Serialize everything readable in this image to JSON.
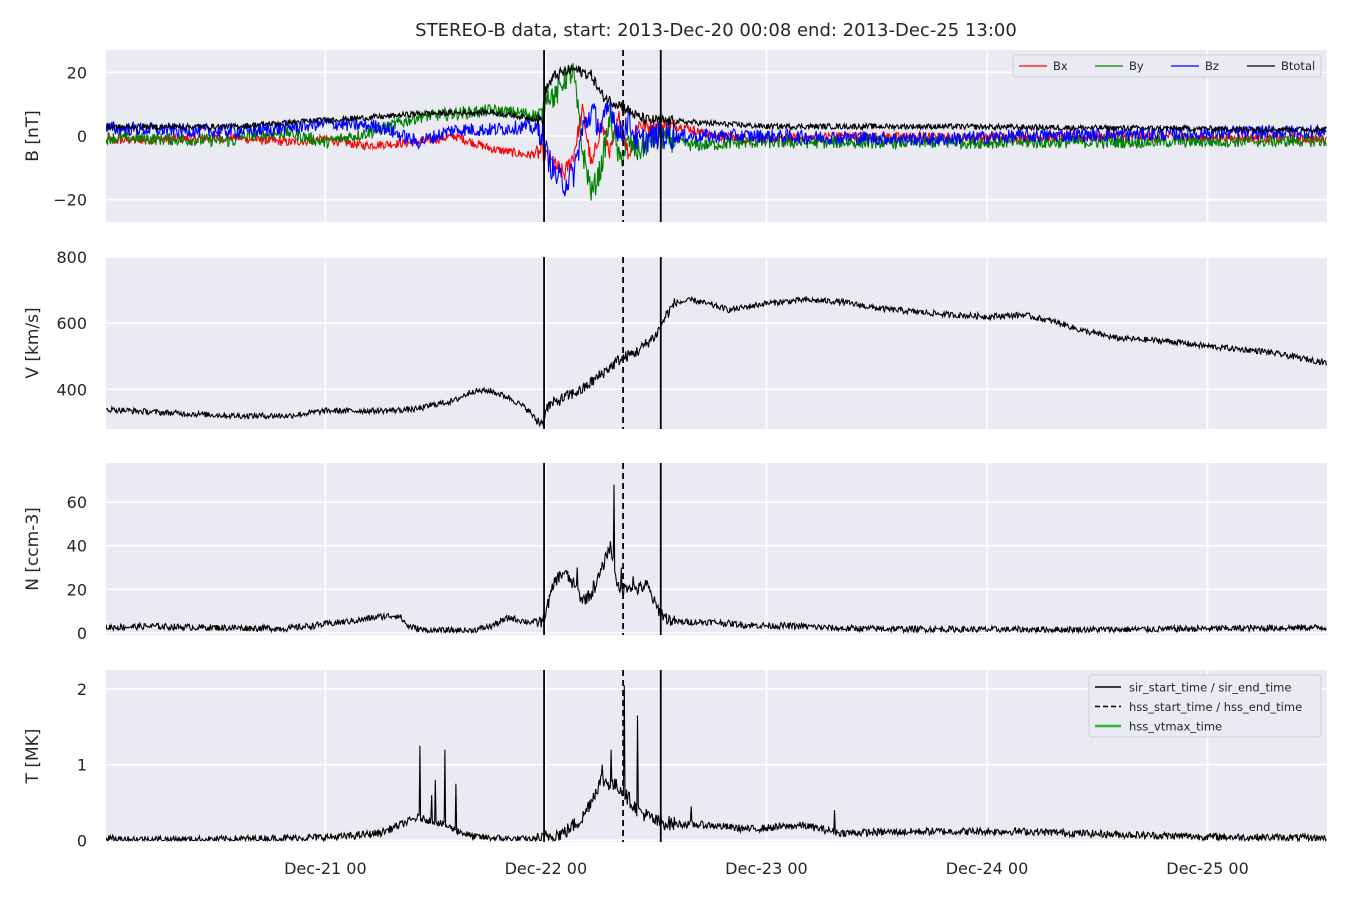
{
  "title": "STEREO-B data, start: 2013-Dec-20 00:08  end: 2013-Dec-25 13:00",
  "chart_data": [
    {
      "type": "line",
      "panel": "B",
      "ylabel": "B [nT]",
      "ylim": [
        -27,
        27
      ],
      "yticks": [
        -20,
        0,
        20
      ],
      "xlim_hours": [
        0.13,
        133.0
      ],
      "grid": true,
      "legend": "top-right",
      "series": [
        {
          "name": "Bx",
          "color": "#ff0000",
          "base": [
            [
              0,
              -1.5
            ],
            [
              14,
              -0.5
            ],
            [
              20,
              -2
            ],
            [
              24,
              -1
            ],
            [
              28,
              -3
            ],
            [
              34,
              -2
            ],
            [
              38,
              0
            ],
            [
              42,
              -4
            ],
            [
              46,
              -6
            ],
            [
              47.7,
              -5
            ],
            [
              48.5,
              -8
            ],
            [
              50,
              -12
            ],
            [
              51,
              -6
            ],
            [
              52,
              8
            ],
            [
              53,
              -10
            ],
            [
              54,
              4
            ],
            [
              55,
              -5
            ],
            [
              56,
              6
            ],
            [
              57,
              -6
            ],
            [
              58,
              4
            ],
            [
              59,
              3
            ],
            [
              63,
              3
            ],
            [
              66,
              0
            ],
            [
              72,
              -1
            ],
            [
              80,
              0
            ],
            [
              96,
              -0.5
            ],
            [
              110,
              0
            ],
            [
              133,
              -1
            ]
          ],
          "noise": 1.4
        },
        {
          "name": "By",
          "color": "#008000",
          "base": [
            [
              0,
              -0.5
            ],
            [
              14,
              -1.5
            ],
            [
              15,
              0
            ],
            [
              20,
              1
            ],
            [
              24,
              -2
            ],
            [
              30,
              2
            ],
            [
              34,
              6
            ],
            [
              38,
              7
            ],
            [
              42,
              8
            ],
            [
              46,
              7
            ],
            [
              47.7,
              6
            ],
            [
              48,
              14
            ],
            [
              49,
              12
            ],
            [
              50,
              18
            ],
            [
              51,
              20
            ],
            [
              52,
              -5
            ],
            [
              53,
              -18
            ],
            [
              54,
              -10
            ],
            [
              55,
              6
            ],
            [
              56,
              -8
            ],
            [
              57,
              -2
            ],
            [
              58,
              -5
            ],
            [
              60,
              0
            ],
            [
              64,
              -3
            ],
            [
              70,
              -2
            ],
            [
              80,
              -2
            ],
            [
              100,
              -2
            ],
            [
              133,
              -1.5
            ]
          ],
          "noise": 2.0
        },
        {
          "name": "Bz",
          "color": "#0000ff",
          "base": [
            [
              0,
              2.5
            ],
            [
              12,
              1.5
            ],
            [
              18,
              2
            ],
            [
              24,
              4
            ],
            [
              30,
              3
            ],
            [
              34,
              -2
            ],
            [
              38,
              2
            ],
            [
              42,
              2
            ],
            [
              46,
              3
            ],
            [
              47.7,
              1
            ],
            [
              48,
              -5
            ],
            [
              49,
              -12
            ],
            [
              50,
              -15
            ],
            [
              51,
              -12
            ],
            [
              52,
              2
            ],
            [
              53,
              8
            ],
            [
              54,
              2
            ],
            [
              55,
              10
            ],
            [
              56,
              0
            ],
            [
              57,
              5
            ],
            [
              58,
              -2
            ],
            [
              60,
              0
            ],
            [
              66,
              0
            ],
            [
              72,
              0
            ],
            [
              90,
              -1
            ],
            [
              100,
              0
            ],
            [
              133,
              1.5
            ]
          ],
          "noise": 2.2
        },
        {
          "name": "Btotal",
          "color": "#000000",
          "base": [
            [
              0,
              2.8
            ],
            [
              14,
              3
            ],
            [
              24,
              5
            ],
            [
              30,
              6
            ],
            [
              34,
              7
            ],
            [
              42,
              7.5
            ],
            [
              47.7,
              5
            ],
            [
              48,
              15
            ],
            [
              49,
              19
            ],
            [
              50,
              20
            ],
            [
              51,
              21
            ],
            [
              52,
              20
            ],
            [
              53,
              19
            ],
            [
              54,
              13
            ],
            [
              55,
              11
            ],
            [
              56,
              10
            ],
            [
              57,
              8
            ],
            [
              58,
              6
            ],
            [
              59,
              5
            ],
            [
              66,
              4
            ],
            [
              72,
              3
            ],
            [
              90,
              3
            ],
            [
              110,
              2.5
            ],
            [
              133,
              2
            ]
          ],
          "noise": 0.9
        }
      ]
    },
    {
      "type": "line",
      "panel": "V",
      "ylabel": "V [km/s]",
      "ylim": [
        280,
        800
      ],
      "yticks": [
        400,
        600,
        800
      ],
      "xlim_hours": [
        0.13,
        133.0
      ],
      "grid": true,
      "series": [
        {
          "name": "",
          "color": "#000000",
          "base": [
            [
              0,
              340
            ],
            [
              6,
              330
            ],
            [
              14,
              320
            ],
            [
              20,
              320
            ],
            [
              24,
              335
            ],
            [
              30,
              335
            ],
            [
              34,
              340
            ],
            [
              36,
              355
            ],
            [
              38,
              365
            ],
            [
              40,
              395
            ],
            [
              42,
              395
            ],
            [
              44,
              375
            ],
            [
              46,
              340
            ],
            [
              47,
              305
            ],
            [
              47.7,
              300
            ],
            [
              48,
              345
            ],
            [
              50,
              375
            ],
            [
              52,
              400
            ],
            [
              54,
              445
            ],
            [
              56,
              490
            ],
            [
              58,
              515
            ],
            [
              60,
              565
            ],
            [
              61,
              620
            ],
            [
              62,
              660
            ],
            [
              64,
              670
            ],
            [
              66,
              655
            ],
            [
              68,
              640
            ],
            [
              70,
              650
            ],
            [
              72,
              660
            ],
            [
              76,
              670
            ],
            [
              80,
              665
            ],
            [
              84,
              645
            ],
            [
              88,
              635
            ],
            [
              92,
              625
            ],
            [
              96,
              620
            ],
            [
              100,
              625
            ],
            [
              104,
              600
            ],
            [
              106,
              580
            ],
            [
              110,
              555
            ],
            [
              116,
              545
            ],
            [
              120,
              530
            ],
            [
              126,
              515
            ],
            [
              133,
              480
            ]
          ],
          "noise": 9
        }
      ]
    },
    {
      "type": "line",
      "panel": "N",
      "ylabel": "N [ccm-3]",
      "ylim": [
        -1,
        78
      ],
      "yticks": [
        0,
        20,
        40,
        60
      ],
      "xlim_hours": [
        0.13,
        133.0
      ],
      "grid": true,
      "series": [
        {
          "name": "",
          "color": "#000000",
          "base": [
            [
              0,
              2.5
            ],
            [
              5,
              3
            ],
            [
              10,
              2.5
            ],
            [
              20,
              2
            ],
            [
              24,
              4
            ],
            [
              28,
              6
            ],
            [
              30,
              7.5
            ],
            [
              32,
              8
            ],
            [
              33,
              3
            ],
            [
              35,
              1
            ],
            [
              40,
              1
            ],
            [
              42,
              3
            ],
            [
              44,
              7
            ],
            [
              46,
              5
            ],
            [
              47.7,
              5
            ],
            [
              48,
              10
            ],
            [
              49,
              24
            ],
            [
              50,
              28
            ],
            [
              51,
              22
            ],
            [
              52,
              15
            ],
            [
              53,
              18
            ],
            [
              54,
              28
            ],
            [
              55,
              40
            ],
            [
              56,
              18
            ],
            [
              57,
              22
            ],
            [
              58,
              20
            ],
            [
              59,
              22
            ],
            [
              60,
              12
            ],
            [
              61,
              7
            ],
            [
              62,
              5
            ],
            [
              66,
              5
            ],
            [
              70,
              3.5
            ],
            [
              76,
              3
            ],
            [
              80,
              2
            ],
            [
              96,
              1.5
            ],
            [
              110,
              1.5
            ],
            [
              133,
              2.5
            ]
          ],
          "noise": 1.5,
          "spikes": [
            [
              54.6,
              35
            ],
            [
              55.4,
              68
            ],
            [
              56.2,
              30
            ],
            [
              53.2,
              24
            ],
            [
              51.4,
              30
            ],
            [
              57.5,
              26
            ]
          ]
        }
      ]
    },
    {
      "type": "line",
      "panel": "T",
      "ylabel": "T [MK]",
      "ylim": [
        -0.02,
        2.25
      ],
      "yticks": [
        0,
        1,
        2
      ],
      "xlim_hours": [
        0.13,
        133.0
      ],
      "grid": true,
      "legend": "top-right",
      "series": [
        {
          "name": "",
          "color": "#000000",
          "base": [
            [
              0,
              0.02
            ],
            [
              10,
              0.01
            ],
            [
              20,
              0.03
            ],
            [
              26,
              0.05
            ],
            [
              30,
              0.1
            ],
            [
              32,
              0.2
            ],
            [
              34,
              0.3
            ],
            [
              36,
              0.25
            ],
            [
              38,
              0.15
            ],
            [
              40,
              0.05
            ],
            [
              44,
              0.02
            ],
            [
              47.7,
              0.01
            ],
            [
              48,
              0.05
            ],
            [
              50,
              0.1
            ],
            [
              52,
              0.3
            ],
            [
              54,
              0.8
            ],
            [
              56,
              0.7
            ],
            [
              58,
              0.4
            ],
            [
              60,
              0.25
            ],
            [
              62,
              0.22
            ],
            [
              66,
              0.2
            ],
            [
              70,
              0.15
            ],
            [
              76,
              0.2
            ],
            [
              80,
              0.1
            ],
            [
              90,
              0.12
            ],
            [
              100,
              0.12
            ],
            [
              110,
              0.08
            ],
            [
              120,
              0.05
            ],
            [
              133,
              0.03
            ]
          ],
          "noise": 0.05,
          "spikes": [
            [
              34.3,
              1.25
            ],
            [
              37.0,
              1.2
            ],
            [
              35.6,
              0.6
            ],
            [
              36.0,
              0.8
            ],
            [
              38.2,
              0.75
            ],
            [
              54.1,
              1.0
            ],
            [
              55.1,
              1.2
            ],
            [
              56.5,
              2.05
            ],
            [
              58.0,
              1.65
            ],
            [
              63.8,
              0.45
            ],
            [
              79.4,
              0.4
            ]
          ]
        }
      ],
      "legend_entries": [
        {
          "label": "sir_start_time / sir_end_time",
          "style": "solid",
          "color": "#000000"
        },
        {
          "label": "hss_start_time / hss_end_time",
          "style": "dashed",
          "color": "#000000"
        },
        {
          "label": "hss_vtmax_time",
          "style": "solid",
          "color": "#2eb82e"
        }
      ]
    }
  ],
  "event_lines": {
    "sir_start_hours": 47.8,
    "hss_start_hours": 56.4,
    "sir_end_hours": 60.5
  },
  "x_axis": {
    "ticks": [
      {
        "hours": 24,
        "label": "Dec-21 00"
      },
      {
        "hours": 48,
        "label": "Dec-22 00"
      },
      {
        "hours": 72,
        "label": "Dec-23 00"
      },
      {
        "hours": 96,
        "label": "Dec-24 00"
      },
      {
        "hours": 120,
        "label": "Dec-25 00"
      }
    ]
  },
  "b_legend": [
    {
      "label": "Bx",
      "color": "#ff0000"
    },
    {
      "label": "By",
      "color": "#008000"
    },
    {
      "label": "Bz",
      "color": "#0000ff"
    },
    {
      "label": "Btotal",
      "color": "#000000"
    }
  ]
}
